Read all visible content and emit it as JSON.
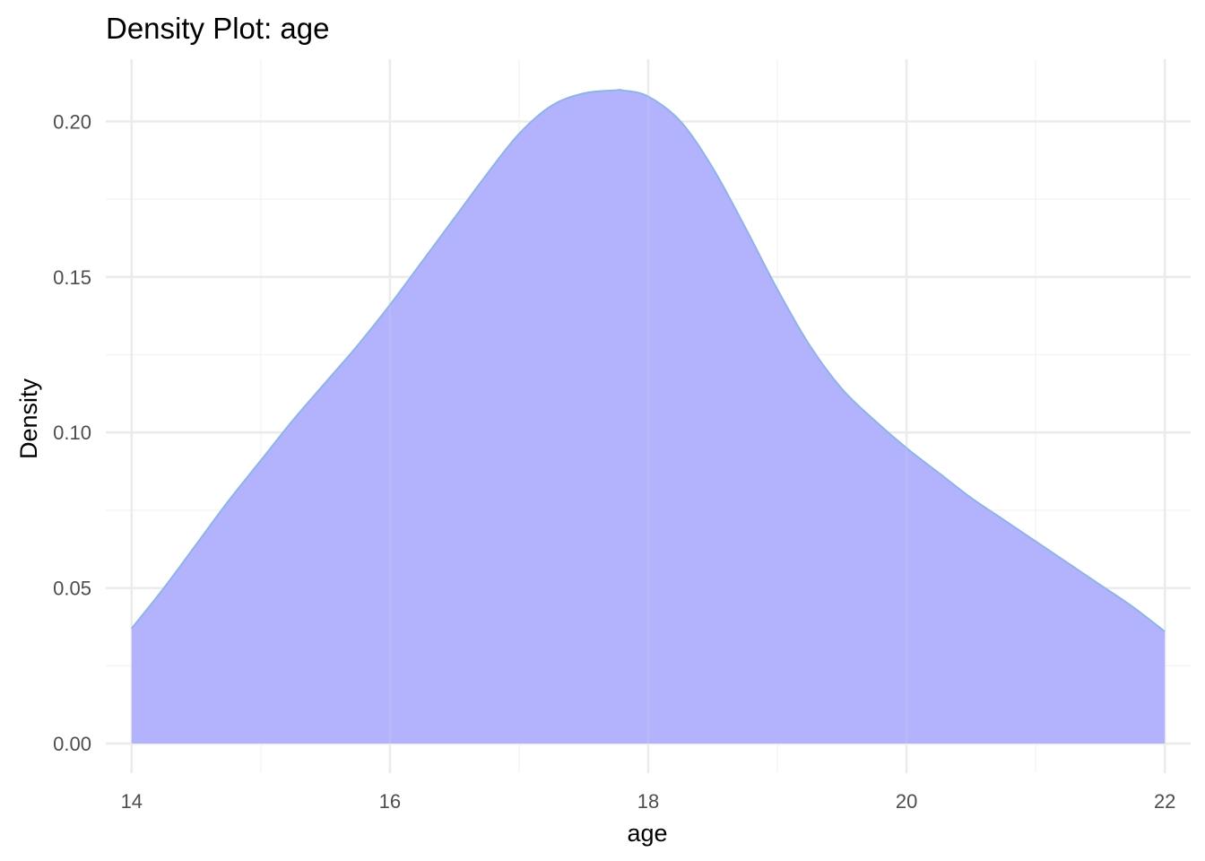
{
  "chart_data": {
    "type": "area",
    "title": "Density Plot: age",
    "xlabel": "age",
    "ylabel": "Density",
    "xlim": [
      13.8,
      22.2
    ],
    "ylim": [
      -0.0095,
      0.22
    ],
    "x_ticks": [
      {
        "value": 14,
        "label": "14"
      },
      {
        "value": 16,
        "label": "16"
      },
      {
        "value": 18,
        "label": "18"
      },
      {
        "value": 20,
        "label": "20"
      },
      {
        "value": 22,
        "label": "22"
      }
    ],
    "y_ticks": [
      {
        "value": 0.0,
        "label": "0.00"
      },
      {
        "value": 0.05,
        "label": "0.05"
      },
      {
        "value": 0.1,
        "label": "0.10"
      },
      {
        "value": 0.15,
        "label": "0.15"
      },
      {
        "value": 0.2,
        "label": "0.20"
      }
    ],
    "x_minor": [
      15,
      17,
      19,
      21
    ],
    "y_minor": [
      0.025,
      0.075,
      0.125,
      0.175
    ],
    "grid": true,
    "legend": "none",
    "fill_color": "#b0b1fc",
    "line_color": "#8fb3e8",
    "series": [
      {
        "x": [
          14.0,
          14.25,
          14.5,
          14.75,
          15.0,
          15.25,
          15.5,
          15.75,
          16.0,
          16.25,
          16.5,
          16.75,
          17.0,
          17.25,
          17.5,
          17.75,
          17.8,
          18.0,
          18.25,
          18.5,
          18.75,
          19.0,
          19.25,
          19.5,
          19.75,
          20.0,
          20.25,
          20.5,
          20.75,
          21.0,
          21.25,
          21.5,
          21.75,
          22.0
        ],
        "y": [
          0.037,
          0.05,
          0.064,
          0.078,
          0.091,
          0.104,
          0.116,
          0.128,
          0.141,
          0.155,
          0.169,
          0.183,
          0.196,
          0.205,
          0.209,
          0.21,
          0.21,
          0.208,
          0.2,
          0.185,
          0.166,
          0.146,
          0.128,
          0.114,
          0.104,
          0.095,
          0.087,
          0.079,
          0.072,
          0.065,
          0.058,
          0.051,
          0.044,
          0.036
        ]
      }
    ]
  }
}
